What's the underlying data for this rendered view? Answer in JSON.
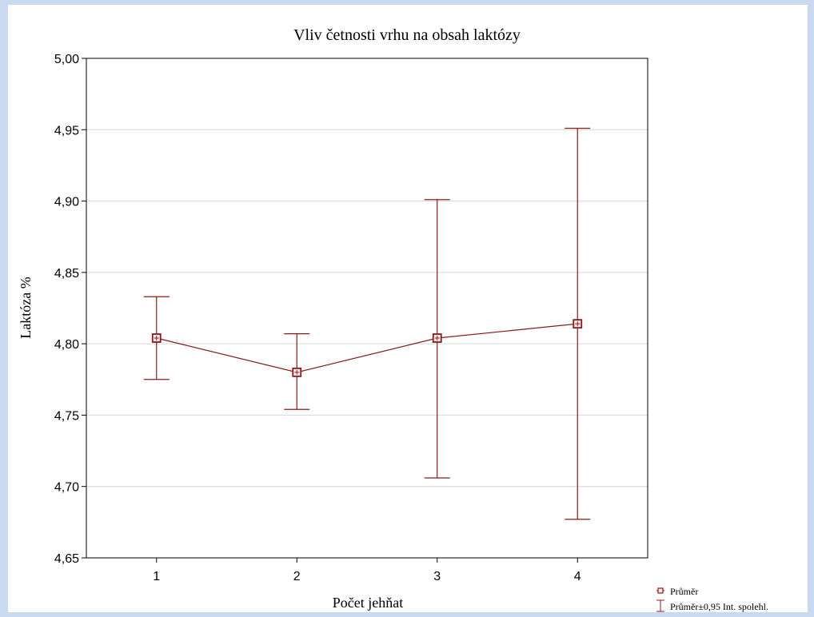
{
  "chart_data": {
    "type": "line",
    "title": "Vliv četnosti vrhu na obsah laktózy",
    "xlabel": "Počet jehňat",
    "ylabel": "Laktóza %",
    "categories": [
      "1",
      "2",
      "3",
      "4"
    ],
    "ylim": [
      4.65,
      5.0
    ],
    "yticks": [
      "4,65",
      "4,70",
      "4,75",
      "4,80",
      "4,85",
      "4,90",
      "4,95",
      "5,00"
    ],
    "grid": true,
    "series": [
      {
        "name": "Průměr",
        "values": [
          4.804,
          4.78,
          4.804,
          4.814
        ],
        "ci_lower": [
          4.775,
          4.754,
          4.706,
          4.677
        ],
        "ci_upper": [
          4.833,
          4.807,
          4.901,
          4.951
        ]
      }
    ],
    "legend": {
      "placement": "bottom-right",
      "items": [
        "Průměr",
        "Průměr±0,95 Int. spolehl."
      ]
    },
    "colors": {
      "series": "#8b1a1a",
      "background": "#c9daf0",
      "plot": "#ffffff",
      "grid": "#d6d6d6"
    }
  }
}
